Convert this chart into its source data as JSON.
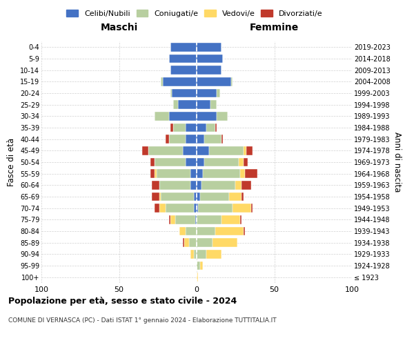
{
  "age_groups": [
    "100+",
    "95-99",
    "90-94",
    "85-89",
    "80-84",
    "75-79",
    "70-74",
    "65-69",
    "60-64",
    "55-59",
    "50-54",
    "45-49",
    "40-44",
    "35-39",
    "30-34",
    "25-29",
    "20-24",
    "15-19",
    "10-14",
    "5-9",
    "0-4"
  ],
  "birth_years": [
    "≤ 1923",
    "1924-1928",
    "1929-1933",
    "1934-1938",
    "1939-1943",
    "1944-1948",
    "1949-1953",
    "1954-1958",
    "1959-1963",
    "1964-1968",
    "1969-1973",
    "1974-1978",
    "1979-1983",
    "1984-1988",
    "1989-1993",
    "1994-1998",
    "1999-2003",
    "2004-2008",
    "2009-2013",
    "2014-2018",
    "2019-2023"
  ],
  "colors": {
    "celibi": "#4472c4",
    "coniugati": "#b8cfa0",
    "vedovi": "#ffd966",
    "divorziati": "#c0392b"
  },
  "maschi": {
    "celibi": [
      0,
      0,
      0,
      0,
      0,
      1,
      2,
      2,
      4,
      4,
      7,
      9,
      7,
      7,
      18,
      12,
      16,
      22,
      17,
      18,
      17
    ],
    "coniugati": [
      0,
      0,
      2,
      5,
      7,
      13,
      18,
      21,
      20,
      22,
      20,
      22,
      11,
      8,
      9,
      3,
      1,
      1,
      0,
      0,
      0
    ],
    "vedovi": [
      0,
      0,
      2,
      3,
      4,
      3,
      4,
      1,
      0,
      1,
      0,
      0,
      0,
      0,
      0,
      0,
      0,
      0,
      0,
      0,
      0
    ],
    "divorziati": [
      0,
      0,
      0,
      1,
      0,
      1,
      3,
      5,
      5,
      3,
      3,
      4,
      2,
      2,
      0,
      0,
      0,
      0,
      0,
      0,
      0
    ]
  },
  "femmine": {
    "celibi": [
      0,
      0,
      0,
      0,
      0,
      0,
      1,
      2,
      3,
      4,
      5,
      8,
      5,
      6,
      13,
      9,
      13,
      22,
      16,
      17,
      16
    ],
    "coniugati": [
      0,
      2,
      6,
      10,
      12,
      16,
      22,
      19,
      22,
      24,
      22,
      22,
      11,
      6,
      7,
      4,
      2,
      1,
      0,
      0,
      0
    ],
    "vedovi": [
      1,
      2,
      10,
      16,
      18,
      12,
      12,
      8,
      4,
      3,
      3,
      2,
      0,
      0,
      0,
      0,
      0,
      0,
      0,
      0,
      0
    ],
    "divorziati": [
      0,
      0,
      0,
      0,
      1,
      1,
      1,
      1,
      6,
      8,
      3,
      4,
      1,
      1,
      0,
      0,
      0,
      0,
      0,
      0,
      0
    ]
  },
  "xlim": 100,
  "title_main": "Popolazione per età, sesso e stato civile - 2024",
  "title_sub": "COMUNE DI VERNASCA (PC) - Dati ISTAT 1° gennaio 2024 - Elaborazione TUTTITALIA.IT",
  "ylabel_left": "Fasce di età",
  "ylabel_right": "Anni di nascita",
  "xlabel_maschi": "Maschi",
  "xlabel_femmine": "Femmine",
  "legend_labels": [
    "Celibi/Nubili",
    "Coniugati/e",
    "Vedovi/e",
    "Divorziati/e"
  ],
  "bg_color": "#ffffff",
  "grid_color": "#cccccc"
}
